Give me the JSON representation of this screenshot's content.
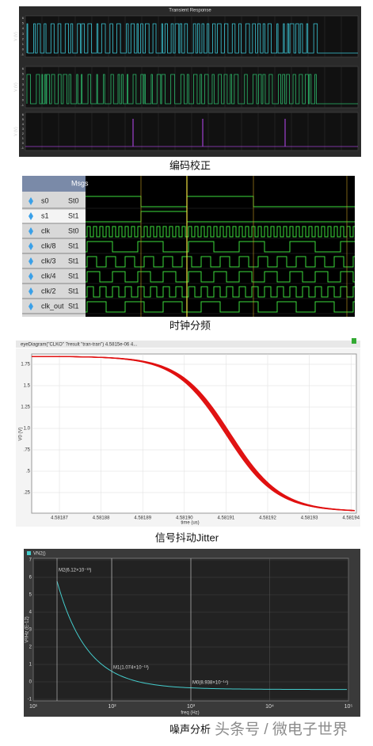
{
  "transient": {
    "title": "Transient Response",
    "y_label": "V (V)",
    "yticks": [
      "6",
      "5",
      "4",
      "3",
      "2",
      "1",
      "0",
      "-1"
    ],
    "caption": "编码校正"
  },
  "divider": {
    "header": "Msgs",
    "signals": [
      [
        "s0",
        "St0"
      ],
      [
        "s1",
        "St1"
      ],
      [
        "clk",
        "St0"
      ],
      [
        "clk/8",
        "St1"
      ],
      [
        "clk/3",
        "St1"
      ],
      [
        "clk/4",
        "St1"
      ],
      [
        "clk/2",
        "St1"
      ],
      [
        "clk_out",
        "St1"
      ]
    ],
    "caption": "时钟分频"
  },
  "jitter": {
    "title": "eyeDiagram(\"CLKO\" ?result \"tran-tran\") 4.5815e-06 4...",
    "yticks": [
      "1.75",
      "1.5",
      "1.25",
      "1.0",
      ".75",
      ".5",
      ".25"
    ],
    "xticks": [
      "4.58187",
      "4.58188",
      "4.58189",
      "4.58190",
      "4.58191",
      "4.58192",
      "4.58193",
      "4.58194"
    ],
    "x_label": "time (us)",
    "y_label": "V0 (V)",
    "caption": "信号抖动Jitter"
  },
  "noise": {
    "legend": "VN2()",
    "yticks": [
      "7",
      "6",
      "5",
      "4",
      "3",
      "2",
      "1",
      "0",
      "-1"
    ],
    "xticks": [
      "10¹",
      "10²",
      "10³",
      "10⁴",
      "10⁵"
    ],
    "x_label": "freq (Hz)",
    "y_label": "V²/Hz (E-12)",
    "markers": [
      "M2(6.12×10⁻¹³)",
      "M1(1.074×10⁻¹³)",
      "M0(8.938×10⁻¹⁴)"
    ],
    "caption": "噪声分析"
  },
  "watermark": "头条号 / 微电子世界"
}
